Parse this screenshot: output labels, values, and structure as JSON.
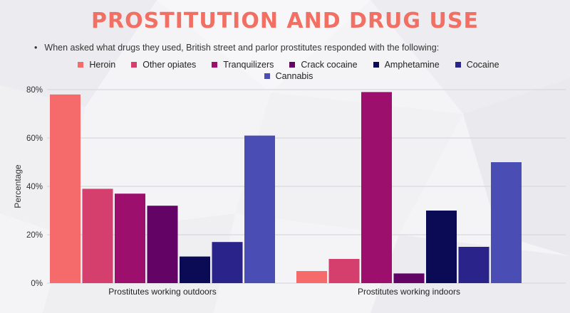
{
  "chart_data": {
    "type": "bar",
    "title": "PROSTITUTION AND DRUG USE",
    "subtitle": "When asked what drugs they used, British street and parlor prostitutes responded with the following:",
    "ylabel": "Percentage",
    "xlabel": "",
    "ylim": [
      0,
      80
    ],
    "yticks": [
      "0%",
      "20%",
      "40%",
      "60%",
      "80%"
    ],
    "ytick_values": [
      0,
      20,
      40,
      60,
      80
    ],
    "grid": true,
    "legend_position": "top",
    "categories": [
      "Prostitutes working outdoors",
      "Prostitutes working indoors"
    ],
    "series": [
      {
        "name": "Heroin",
        "color": "#f56b6b",
        "values": [
          78,
          5
        ]
      },
      {
        "name": "Other opiates",
        "color": "#d43f6e",
        "values": [
          39,
          10
        ]
      },
      {
        "name": "Tranquilizers",
        "color": "#9c0f6c",
        "values": [
          37,
          79
        ]
      },
      {
        "name": "Crack cocaine",
        "color": "#620365",
        "values": [
          32,
          4
        ]
      },
      {
        "name": "Amphetamine",
        "color": "#0b0b55",
        "values": [
          11,
          30
        ]
      },
      {
        "name": "Cocaine",
        "color": "#29238a",
        "values": [
          17,
          15
        ]
      },
      {
        "name": "Cannabis",
        "color": "#4a4db3",
        "values": [
          61,
          50
        ]
      }
    ]
  }
}
